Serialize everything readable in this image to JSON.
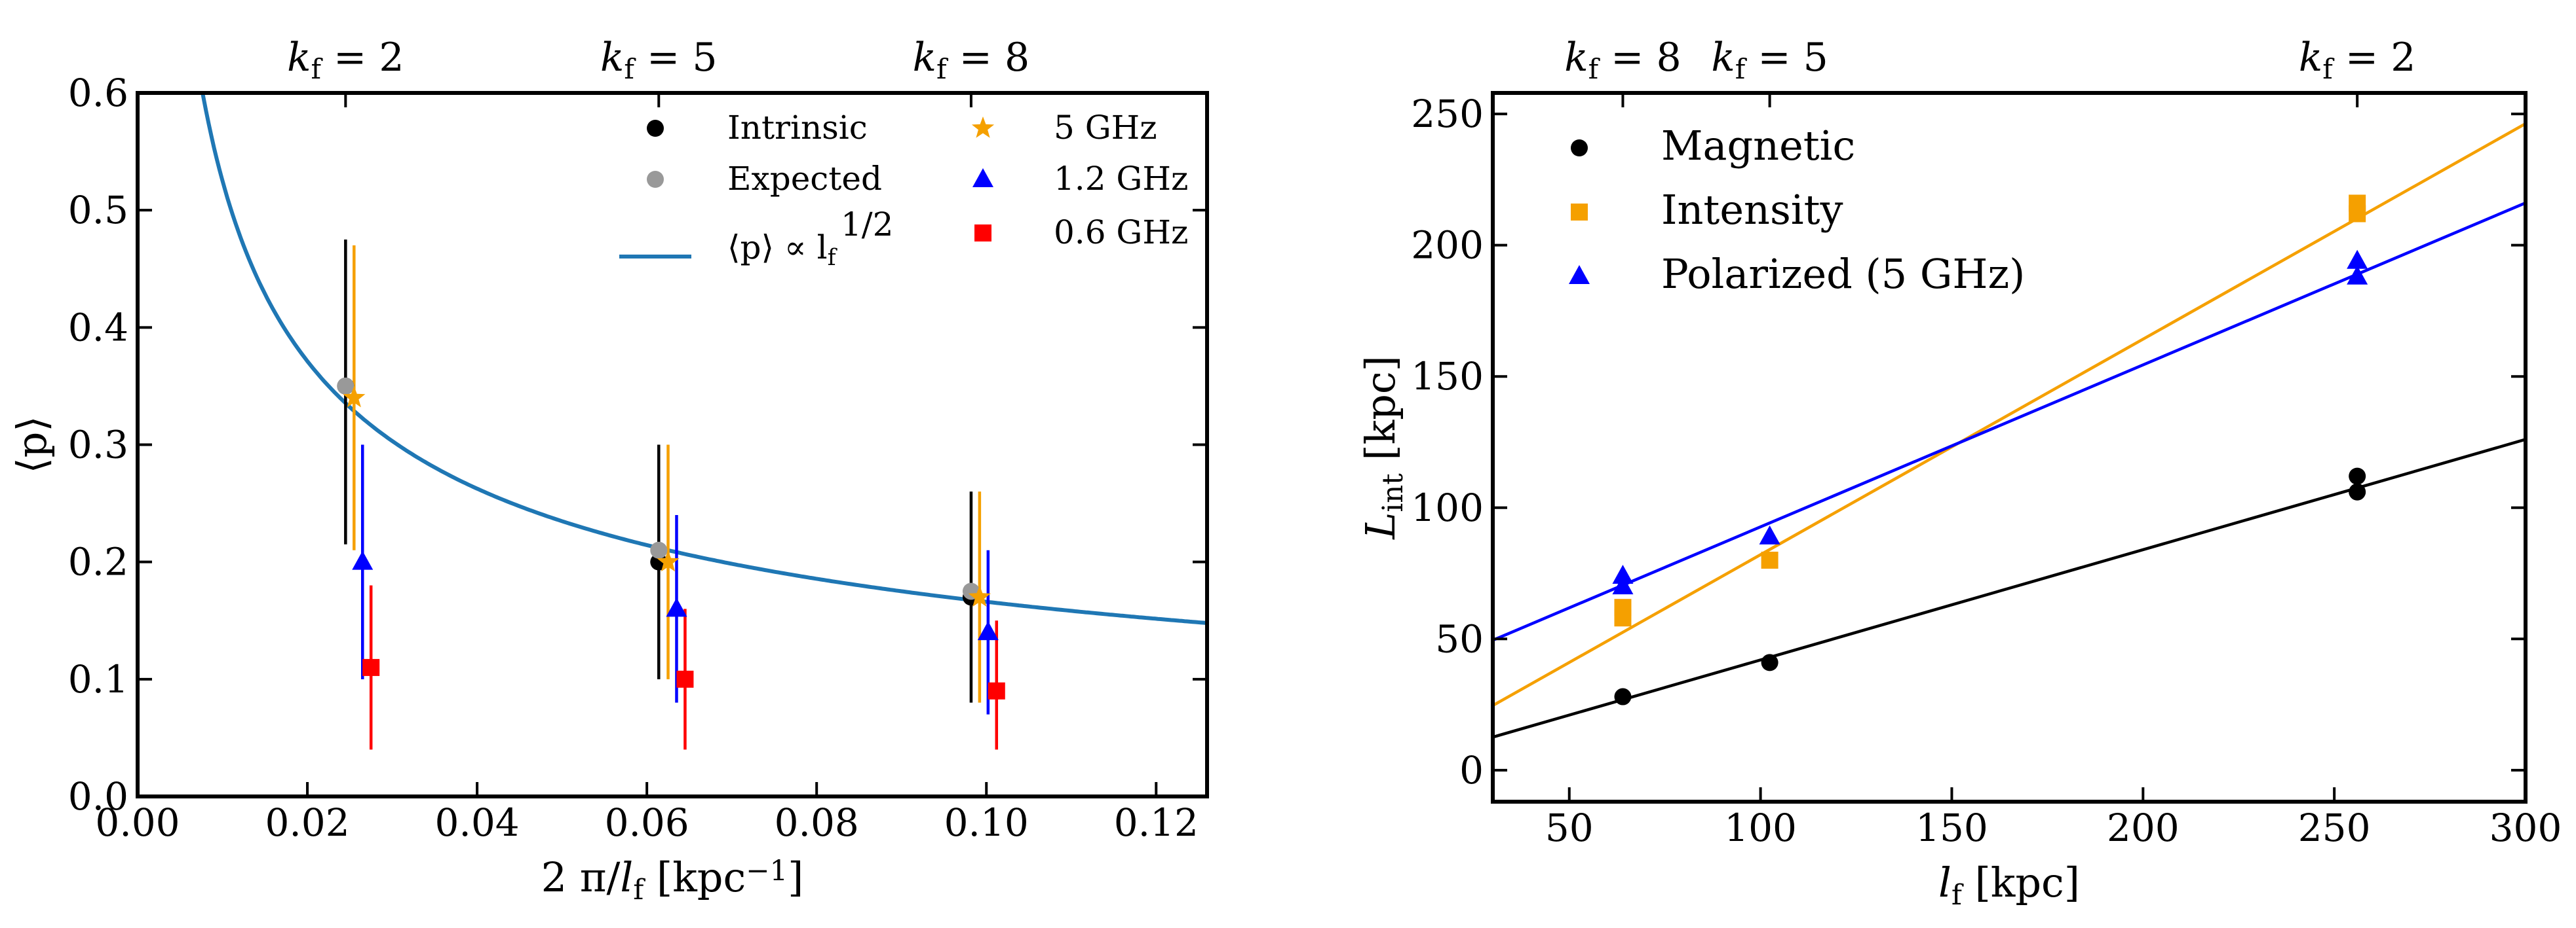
{
  "chart_data": [
    {
      "type": "scatter",
      "xlabel": "2 π/l",
      "xlabel_sub": "f",
      "xlabel_unit": " [kpc",
      "xlabel_unit_sup": "−1",
      "xlabel_close": "]",
      "ylabel": "⟨p⟩",
      "xlim": [
        0.0,
        0.126
      ],
      "ylim": [
        0.0,
        0.6
      ],
      "xticks": [
        0.0,
        0.02,
        0.04,
        0.06,
        0.08,
        0.1,
        0.12
      ],
      "xtick_labels": [
        "0.00",
        "0.02",
        "0.04",
        "0.06",
        "0.08",
        "0.10",
        "0.12"
      ],
      "yticks": [
        0.0,
        0.1,
        0.2,
        0.3,
        0.4,
        0.5,
        0.6
      ],
      "ytick_labels": [
        "0.0",
        "0.1",
        "0.2",
        "0.3",
        "0.4",
        "0.5",
        "0.6"
      ],
      "top_axis": [
        {
          "k": "2",
          "x": 0.0245
        },
        {
          "k": "5",
          "x": 0.0614
        },
        {
          "k": "8",
          "x": 0.0982
        }
      ],
      "series": [
        {
          "name": "Intrinsic",
          "marker": "circle",
          "color": "#000000",
          "points": [
            {
              "x": 0.0245,
              "y": 0.35,
              "lo": 0.215,
              "hi": 0.475
            },
            {
              "x": 0.0614,
              "y": 0.2,
              "lo": 0.1,
              "hi": 0.3
            },
            {
              "x": 0.0982,
              "y": 0.17,
              "lo": 0.08,
              "hi": 0.26
            }
          ]
        },
        {
          "name": "Expected",
          "marker": "circle",
          "color": "#999999",
          "points": [
            {
              "x": 0.0245,
              "y": 0.35
            },
            {
              "x": 0.0614,
              "y": 0.21
            },
            {
              "x": 0.0982,
              "y": 0.175
            }
          ]
        },
        {
          "name": "5 GHz",
          "marker": "star",
          "color": "#f5a000",
          "points": [
            {
              "x": 0.0255,
              "y": 0.34,
              "lo": 0.21,
              "hi": 0.47
            },
            {
              "x": 0.0625,
              "y": 0.2,
              "lo": 0.1,
              "hi": 0.3
            },
            {
              "x": 0.0992,
              "y": 0.17,
              "lo": 0.08,
              "hi": 0.26
            }
          ]
        },
        {
          "name": "1.2 GHz",
          "marker": "triangle",
          "color": "#0000ff",
          "points": [
            {
              "x": 0.0265,
              "y": 0.2,
              "lo": 0.1,
              "hi": 0.3
            },
            {
              "x": 0.0635,
              "y": 0.16,
              "lo": 0.08,
              "hi": 0.24
            },
            {
              "x": 0.1002,
              "y": 0.14,
              "lo": 0.07,
              "hi": 0.21
            }
          ]
        },
        {
          "name": "0.6 GHz",
          "marker": "square",
          "color": "#ff0000",
          "points": [
            {
              "x": 0.0275,
              "y": 0.11,
              "lo": 0.04,
              "hi": 0.18
            },
            {
              "x": 0.0645,
              "y": 0.1,
              "lo": 0.04,
              "hi": 0.16
            },
            {
              "x": 0.1012,
              "y": 0.09,
              "lo": 0.04,
              "hi": 0.15
            }
          ]
        }
      ],
      "curve": {
        "name": "⟨p⟩ ∝ l",
        "sub": "f",
        "sup": "1/2",
        "color": "#1f77b4",
        "A": 0.0525,
        "formula": "y = A / sqrt(x)"
      },
      "legend": "top-right"
    },
    {
      "type": "scatter",
      "xlabel": "l",
      "xlabel_sub": "f",
      "xlabel_unit": " [kpc]",
      "ylabel": "L",
      "ylabel_sub": "int",
      "ylabel_unit": " [kpc]",
      "xlim": [
        30,
        300
      ],
      "ylim": [
        -12,
        258
      ],
      "xticks": [
        50,
        100,
        150,
        200,
        250,
        300
      ],
      "xtick_labels": [
        "50",
        "100",
        "150",
        "200",
        "250",
        "300"
      ],
      "yticks": [
        0,
        50,
        100,
        150,
        200,
        250
      ],
      "ytick_labels": [
        "0",
        "50",
        "100",
        "150",
        "200",
        "250"
      ],
      "top_axis": [
        {
          "k": "8",
          "x": 64
        },
        {
          "k": "5",
          "x": 102.4
        },
        {
          "k": "2",
          "x": 256
        }
      ],
      "series": [
        {
          "name": "Magnetic",
          "marker": "circle",
          "color": "#000000",
          "points": [
            {
              "x": 64,
              "y": 28
            },
            {
              "x": 102.4,
              "y": 41
            },
            {
              "x": 256,
              "y": 112
            },
            {
              "x": 256,
              "y": 106
            }
          ],
          "fit": {
            "slope": 0.42,
            "intercept": 0.0
          }
        },
        {
          "name": "Intensity",
          "marker": "square",
          "color": "#f5a000",
          "points": [
            {
              "x": 64,
              "y": 62
            },
            {
              "x": 64,
              "y": 58
            },
            {
              "x": 102.4,
              "y": 80
            },
            {
              "x": 256,
              "y": 216
            },
            {
              "x": 256,
              "y": 212
            }
          ],
          "fit": {
            "slope": 0.821,
            "intercept": 0.0
          }
        },
        {
          "name": "Polarized (5 GHz)",
          "marker": "triangle",
          "color": "#0000ff",
          "points": [
            {
              "x": 64,
              "y": 74
            },
            {
              "x": 64,
              "y": 70
            },
            {
              "x": 102.4,
              "y": 89
            },
            {
              "x": 256,
              "y": 194
            },
            {
              "x": 256,
              "y": 188
            }
          ],
          "fit": {
            "slope": 0.617,
            "intercept": 31.0
          }
        }
      ],
      "legend": "top-left"
    }
  ]
}
